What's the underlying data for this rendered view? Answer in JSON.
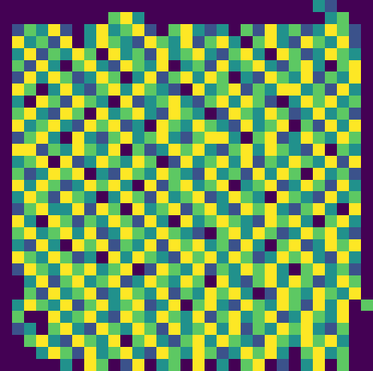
{
  "chart_data": {
    "type": "heatmap",
    "color": "Viridis",
    "tick_labels": false,
    "grid": false,
    "cells": [
      [
        0,
        0,
        0,
        0,
        0,
        0,
        0,
        0,
        0,
        0,
        0,
        0,
        0,
        0,
        0,
        0,
        0,
        0,
        0,
        0,
        0,
        0,
        0,
        0,
        0,
        0,
        2,
        1,
        0,
        0,
        0
      ],
      [
        0,
        0,
        0,
        0,
        0,
        0,
        0,
        0,
        0,
        3,
        4,
        2,
        0,
        0,
        0,
        0,
        0,
        0,
        0,
        0,
        0,
        0,
        0,
        0,
        0,
        0,
        0,
        2,
        3,
        0,
        0
      ],
      [
        0,
        1,
        3,
        2,
        4,
        1,
        0,
        2,
        4,
        2,
        3,
        4,
        1,
        0,
        3,
        4,
        2,
        1,
        2,
        0,
        3,
        1,
        4,
        2,
        3,
        1,
        2,
        4,
        3,
        1,
        0
      ],
      [
        0,
        4,
        2,
        3,
        1,
        4,
        0,
        2,
        4,
        3,
        2,
        1,
        4,
        3,
        2,
        4,
        1,
        3,
        4,
        2,
        0,
        3,
        4,
        2,
        1,
        4,
        3,
        2,
        4,
        1,
        0
      ],
      [
        0,
        2,
        4,
        1,
        3,
        2,
        4,
        3,
        0,
        4,
        2,
        3,
        1,
        4,
        2,
        3,
        4,
        2,
        1,
        3,
        4,
        2,
        0,
        4,
        3,
        1,
        2,
        4,
        3,
        2,
        0
      ],
      [
        0,
        3,
        1,
        4,
        2,
        0,
        3,
        4,
        2,
        1,
        4,
        3,
        2,
        4,
        0,
        2,
        3,
        1,
        4,
        2,
        3,
        4,
        2,
        1,
        3,
        4,
        2,
        0,
        3,
        4,
        0
      ],
      [
        0,
        1,
        4,
        2,
        4,
        3,
        1,
        2,
        4,
        3,
        0,
        2,
        4,
        1,
        3,
        4,
        2,
        4,
        3,
        0,
        2,
        1,
        4,
        3,
        2,
        4,
        1,
        3,
        2,
        4,
        0
      ],
      [
        0,
        4,
        3,
        0,
        2,
        4,
        2,
        1,
        3,
        4,
        2,
        4,
        3,
        2,
        1,
        0,
        4,
        2,
        3,
        4,
        1,
        3,
        2,
        4,
        4,
        2,
        3,
        1,
        4,
        2,
        0
      ],
      [
        0,
        2,
        0,
        4,
        3,
        1,
        4,
        3,
        2,
        0,
        4,
        1,
        2,
        3,
        4,
        2,
        1,
        3,
        4,
        2,
        4,
        3,
        1,
        0,
        2,
        4,
        3,
        4,
        2,
        3,
        0
      ],
      [
        0,
        3,
        4,
        2,
        1,
        4,
        3,
        0,
        4,
        2,
        3,
        4,
        2,
        1,
        4,
        3,
        2,
        0,
        1,
        4,
        3,
        2,
        4,
        3,
        1,
        2,
        4,
        2,
        3,
        1,
        0
      ],
      [
        0,
        4,
        2,
        3,
        4,
        2,
        1,
        4,
        3,
        4,
        1,
        2,
        0,
        4,
        3,
        2,
        4,
        3,
        2,
        1,
        4,
        2,
        3,
        4,
        0,
        3,
        1,
        4,
        2,
        4,
        0
      ],
      [
        0,
        1,
        3,
        4,
        2,
        0,
        4,
        2,
        1,
        3,
        4,
        2,
        3,
        4,
        2,
        1,
        3,
        4,
        4,
        2,
        0,
        3,
        4,
        1,
        2,
        4,
        3,
        2,
        4,
        3,
        0
      ],
      [
        0,
        4,
        4,
        1,
        3,
        2,
        4,
        3,
        2,
        4,
        0,
        3,
        1,
        2,
        4,
        3,
        4,
        2,
        1,
        3,
        4,
        2,
        4,
        3,
        2,
        1,
        4,
        0,
        3,
        2,
        0
      ],
      [
        0,
        2,
        3,
        4,
        0,
        4,
        1,
        2,
        4,
        3,
        2,
        4,
        3,
        0,
        1,
        4,
        2,
        3,
        4,
        2,
        4,
        1,
        3,
        2,
        4,
        3,
        2,
        4,
        1,
        4,
        0
      ],
      [
        0,
        3,
        1,
        2,
        4,
        3,
        4,
        0,
        2,
        1,
        4,
        3,
        2,
        4,
        3,
        2,
        1,
        4,
        2,
        3,
        1,
        4,
        2,
        4,
        3,
        0,
        4,
        2,
        3,
        1,
        0
      ],
      [
        0,
        4,
        2,
        4,
        3,
        1,
        2,
        4,
        3,
        4,
        2,
        0,
        4,
        1,
        3,
        4,
        2,
        3,
        4,
        0,
        2,
        3,
        4,
        1,
        2,
        4,
        3,
        1,
        4,
        2,
        0
      ],
      [
        0,
        2,
        4,
        3,
        1,
        4,
        3,
        2,
        0,
        2,
        4,
        3,
        1,
        4,
        2,
        3,
        4,
        1,
        2,
        4,
        3,
        2,
        0,
        4,
        3,
        2,
        1,
        4,
        2,
        3,
        0
      ],
      [
        0,
        1,
        3,
        4,
        2,
        2,
        4,
        1,
        4,
        3,
        0,
        4,
        2,
        3,
        4,
        1,
        3,
        4,
        2,
        1,
        4,
        3,
        4,
        2,
        1,
        3,
        4,
        2,
        0,
        4,
        0
      ],
      [
        0,
        4,
        2,
        0,
        4,
        3,
        1,
        3,
        2,
        4,
        3,
        1,
        4,
        2,
        0,
        4,
        2,
        3,
        4,
        3,
        2,
        1,
        4,
        3,
        4,
        2,
        0,
        3,
        4,
        2,
        0
      ],
      [
        0,
        3,
        4,
        2,
        3,
        4,
        2,
        4,
        1,
        2,
        4,
        3,
        2,
        4,
        3,
        2,
        1,
        0,
        3,
        4,
        2,
        4,
        3,
        1,
        2,
        4,
        3,
        4,
        2,
        1,
        0
      ],
      [
        0,
        2,
        1,
        4,
        2,
        0,
        4,
        3,
        4,
        1,
        3,
        2,
        4,
        1,
        4,
        3,
        4,
        2,
        3,
        1,
        4,
        2,
        0,
        3,
        4,
        1,
        2,
        4,
        3,
        4,
        0
      ],
      [
        0,
        4,
        3,
        2,
        4,
        3,
        1,
        2,
        0,
        4,
        2,
        4,
        3,
        2,
        1,
        4,
        3,
        4,
        2,
        4,
        3,
        1,
        2,
        4,
        3,
        4,
        2,
        1,
        4,
        2,
        0
      ],
      [
        0,
        1,
        4,
        3,
        2,
        4,
        3,
        4,
        2,
        3,
        4,
        0,
        1,
        4,
        3,
        2,
        4,
        1,
        3,
        2,
        4,
        3,
        4,
        2,
        0,
        3,
        4,
        2,
        3,
        1,
        0
      ],
      [
        0,
        0,
        2,
        4,
        1,
        3,
        4,
        2,
        3,
        4,
        1,
        2,
        4,
        3,
        2,
        4,
        3,
        0,
        4,
        2,
        1,
        3,
        4,
        2,
        4,
        3,
        1,
        2,
        4,
        3,
        0
      ],
      [
        0,
        0,
        3,
        1,
        4,
        2,
        3,
        4,
        1,
        2,
        4,
        3,
        2,
        4,
        1,
        3,
        2,
        4,
        3,
        4,
        2,
        0,
        1,
        4,
        3,
        2,
        4,
        3,
        2,
        4,
        0
      ],
      [
        0,
        2,
        4,
        3,
        2,
        4,
        1,
        3,
        4,
        2,
        3,
        4,
        1,
        2,
        4,
        0,
        3,
        4,
        2,
        1,
        4,
        3,
        2,
        4,
        3,
        1,
        4,
        2,
        4,
        0,
        3
      ],
      [
        0,
        3,
        0,
        0,
        4,
        2,
        3,
        4,
        2,
        1,
        4,
        3,
        2,
        4,
        3,
        2,
        4,
        1,
        3,
        4,
        2,
        3,
        4,
        1,
        2,
        4,
        3,
        2,
        4,
        0,
        0
      ],
      [
        0,
        1,
        2,
        0,
        3,
        4,
        2,
        1,
        4,
        3,
        2,
        4,
        3,
        1,
        4,
        2,
        3,
        4,
        2,
        4,
        1,
        3,
        2,
        4,
        3,
        4,
        2,
        1,
        3,
        0,
        0
      ],
      [
        0,
        0,
        3,
        4,
        2,
        1,
        4,
        3,
        2,
        4,
        0,
        3,
        4,
        2,
        1,
        3,
        4,
        2,
        4,
        3,
        2,
        1,
        4,
        3,
        2,
        4,
        3,
        4,
        2,
        0,
        0
      ],
      [
        0,
        0,
        0,
        2,
        4,
        3,
        1,
        4,
        2,
        3,
        4,
        2,
        1,
        4,
        3,
        2,
        4,
        3,
        1,
        2,
        4,
        3,
        4,
        2,
        0,
        3,
        4,
        2,
        3,
        0,
        0
      ],
      [
        0,
        0,
        0,
        0,
        0,
        2,
        0,
        4,
        3,
        0,
        1,
        4,
        0,
        2,
        3,
        0,
        4,
        0,
        2,
        0,
        3,
        4,
        0,
        1,
        0,
        2,
        4,
        0,
        3,
        0,
        0
      ]
    ]
  }
}
